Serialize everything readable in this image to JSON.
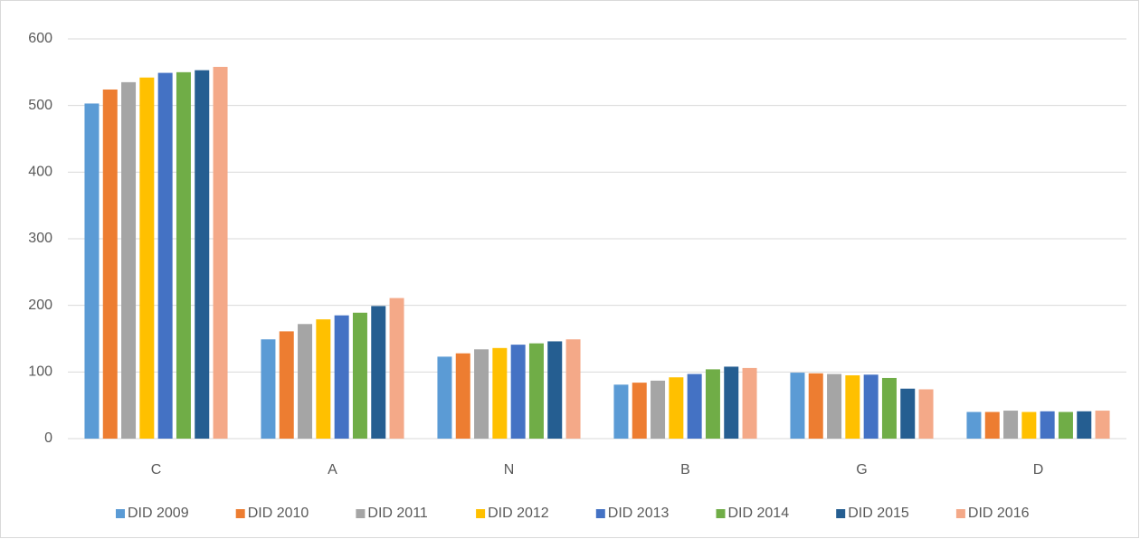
{
  "chart_data": {
    "type": "bar",
    "categories": [
      "C",
      "A",
      "N",
      "B",
      "G",
      "D"
    ],
    "series": [
      {
        "name": "DID 2009",
        "color": "#5b9bd5",
        "values": [
          503,
          149,
          123,
          81,
          99,
          40
        ]
      },
      {
        "name": "DID 2010",
        "color": "#ed7d31",
        "values": [
          524,
          161,
          128,
          84,
          98,
          40
        ]
      },
      {
        "name": "DID 2011",
        "color": "#a5a5a5",
        "values": [
          535,
          172,
          134,
          87,
          97,
          42
        ]
      },
      {
        "name": "DID 2012",
        "color": "#ffc000",
        "values": [
          542,
          179,
          136,
          92,
          95,
          40
        ]
      },
      {
        "name": "DID 2013",
        "color": "#4472c4",
        "values": [
          549,
          185,
          141,
          97,
          96,
          41
        ]
      },
      {
        "name": "DID 2014",
        "color": "#70ad47",
        "values": [
          550,
          189,
          143,
          104,
          91,
          40
        ]
      },
      {
        "name": "DID 2015",
        "color": "#255e91",
        "values": [
          553,
          199,
          146,
          108,
          75,
          41
        ]
      },
      {
        "name": "DID 2016",
        "color": "#f4a988",
        "values": [
          558,
          211,
          149,
          106,
          74,
          42
        ]
      }
    ],
    "ylim": [
      0,
      600
    ],
    "yticks": [
      0,
      100,
      200,
      300,
      400,
      500,
      600
    ],
    "grid": true,
    "legend": "bottom"
  }
}
